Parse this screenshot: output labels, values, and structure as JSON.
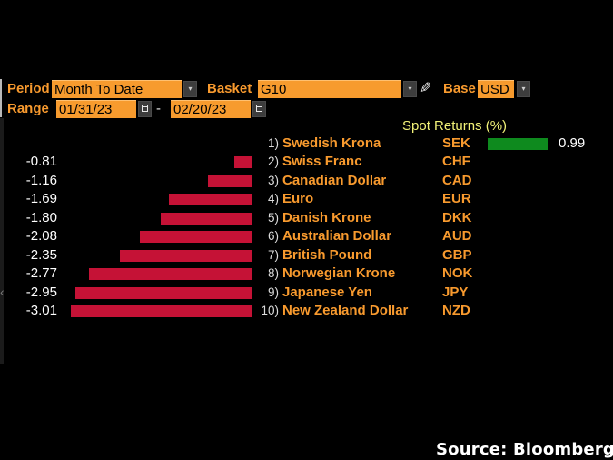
{
  "toolbar": {
    "period_label": "Period",
    "period_value": "Month To Date",
    "basket_label": "Basket",
    "basket_value": "G10",
    "base_label": "Base",
    "base_value": "USD",
    "range_label": "Range",
    "range_start": "01/31/23",
    "range_separator": "-",
    "range_end": "02/20/23"
  },
  "icons": {
    "dropdown_arrow": "▾",
    "pencil": "✎",
    "scroll_left": "‹"
  },
  "colors": {
    "accent_amber": "#f89a2e",
    "field_amber": "#f79b2e",
    "header_yellow": "#f2f278",
    "positive_green": "#0e8a1e",
    "negative_red": "#c51236"
  },
  "chart_data": {
    "type": "bar",
    "orientation": "horizontal",
    "title": "Spot Returns (%)",
    "positive_color": "#0e8a1e",
    "negative_color": "#c51236",
    "rows": [
      {
        "rank": "1)",
        "name": "Swedish Krona",
        "ticker": "SEK",
        "value": 0.99,
        "display": "0.99"
      },
      {
        "rank": "2)",
        "name": "Swiss Franc",
        "ticker": "CHF",
        "value": -0.81,
        "display": "-0.81"
      },
      {
        "rank": "3)",
        "name": "Canadian Dollar",
        "ticker": "CAD",
        "value": -1.16,
        "display": "-1.16"
      },
      {
        "rank": "4)",
        "name": "Euro",
        "ticker": "EUR",
        "value": -1.69,
        "display": "-1.69"
      },
      {
        "rank": "5)",
        "name": "Danish Krone",
        "ticker": "DKK",
        "value": -1.8,
        "display": "-1.80"
      },
      {
        "rank": "6)",
        "name": "Australian Dollar",
        "ticker": "AUD",
        "value": -2.08,
        "display": "-2.08"
      },
      {
        "rank": "7)",
        "name": "British Pound",
        "ticker": "GBP",
        "value": -2.35,
        "display": "-2.35"
      },
      {
        "rank": "8)",
        "name": "Norwegian Krone",
        "ticker": "NOK",
        "value": -2.77,
        "display": "-2.77"
      },
      {
        "rank": "9)",
        "name": "Japanese Yen",
        "ticker": "JPY",
        "value": -2.95,
        "display": "-2.95"
      },
      {
        "rank": "10)",
        "name": "New Zealand Dollar",
        "ticker": "NZD",
        "value": -3.01,
        "display": "-3.01"
      }
    ]
  },
  "footer": {
    "source": "Source: Bloomberg"
  }
}
